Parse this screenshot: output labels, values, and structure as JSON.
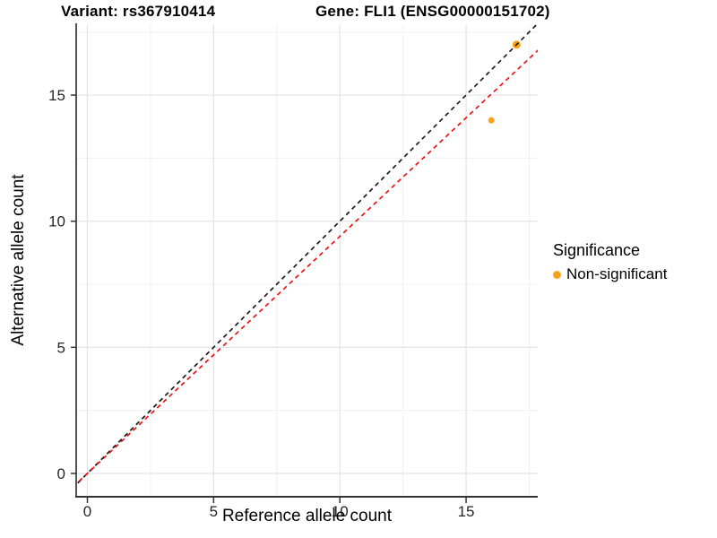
{
  "chart_data": {
    "type": "scatter",
    "title_left": "Variant: rs367910414",
    "title_right": "Gene: FLI1 (ENSG00000151702)",
    "xlabel": "Reference allele count",
    "ylabel": "Alternative allele count",
    "x_ticks": [
      0,
      5,
      10,
      15
    ],
    "y_ticks": [
      0,
      5,
      10,
      15
    ],
    "minor_ticks": [
      2.5,
      7.5,
      12.5,
      17.5
    ],
    "xlim": [
      -0.44,
      17.84
    ],
    "ylim": [
      -0.89,
      17.81
    ],
    "grid": "major+minor",
    "legend_position": "right",
    "points": [
      {
        "x": 17,
        "y": 17,
        "size": 4.5,
        "significance": "Non-significant"
      },
      {
        "x": 16,
        "y": 14,
        "size": 3.5,
        "significance": "Non-significant"
      }
    ],
    "lines": [
      {
        "name": "identity",
        "slope": 1,
        "intercept": 0,
        "color": "#1a1a1a",
        "style": "dashed"
      },
      {
        "name": "fit",
        "slope": 0.94,
        "intercept": 0,
        "color": "#ee1111",
        "style": "dashed"
      }
    ],
    "legend": {
      "title": "Significance",
      "items": [
        {
          "label": "Non-significant",
          "color": "#F9A11B"
        }
      ]
    },
    "colors": {
      "point": "#F9A11B",
      "grid_major": "#e3e3e3",
      "grid_minor": "#f0f0f0",
      "axis_line": "#333333",
      "tick_text": "#262626"
    }
  }
}
